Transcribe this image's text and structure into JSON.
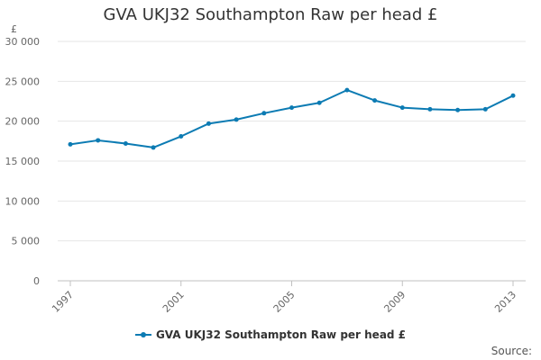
{
  "chart_data": {
    "type": "line",
    "title": "GVA UKJ32 Southampton Raw per head £",
    "ylabel": "£",
    "xlabel": "",
    "x": [
      1997,
      1998,
      1999,
      2000,
      2001,
      2002,
      2003,
      2004,
      2005,
      2006,
      2007,
      2008,
      2009,
      2010,
      2011,
      2012,
      2013
    ],
    "x_tick_labels": [
      "1997",
      "2001",
      "2005",
      "2009",
      "2013"
    ],
    "x_ticks": [
      1997,
      2001,
      2005,
      2009,
      2013
    ],
    "y_tick_labels": [
      "0",
      "5 000",
      "10 000",
      "15 000",
      "20 000",
      "25 000",
      "30 000"
    ],
    "y_ticks": [
      0,
      5000,
      10000,
      15000,
      20000,
      25000,
      30000
    ],
    "ylim": [
      0,
      30000
    ],
    "grid": true,
    "legend_position": "bottom",
    "series": [
      {
        "name": "GVA UKJ32 Southampton Raw per head £",
        "color": "#0c7bb3",
        "values": [
          17100,
          17600,
          17200,
          16700,
          18100,
          19700,
          20200,
          21000,
          21700,
          22300,
          23900,
          22600,
          21700,
          21500,
          21400,
          21500,
          23200
        ]
      }
    ]
  },
  "source_label": "Source:"
}
